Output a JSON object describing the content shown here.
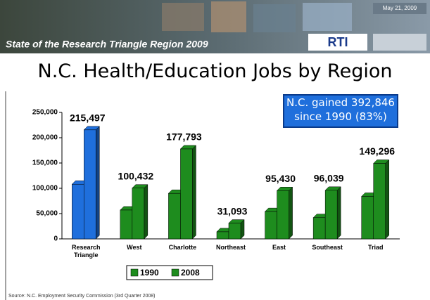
{
  "header": {
    "title": "State of the Research Triangle Region 2009",
    "date": "May 21, 2009",
    "logo": "RTI"
  },
  "source": "Source: N.C. Employment Security Commission (3rd Quarter 2008)",
  "chart_data": {
    "type": "bar",
    "title": "N.C. Health/Education Jobs by Region",
    "annotation": "N.C. gained 392,846 since 1990 (83%)",
    "categories": [
      "Research Triangle",
      "West",
      "Charlotte",
      "Northeast",
      "East",
      "Southeast",
      "Triad"
    ],
    "series": [
      {
        "name": "1990",
        "color": "#1e8c1e",
        "values": [
          108000,
          57000,
          90000,
          14000,
          54000,
          42000,
          84000
        ]
      },
      {
        "name": "2008",
        "color": "#1e8c1e",
        "values": [
          215497,
          100432,
          177793,
          31093,
          95430,
          96039,
          149296
        ],
        "value_labels": [
          "215,497",
          "100,432",
          "177,793",
          "31,093",
          "95,430",
          "96,039",
          "149,296"
        ]
      }
    ],
    "highlight_index": 0,
    "highlight_color": "#1f6fdc",
    "ylim": [
      0,
      250000
    ],
    "yticks": [
      0,
      {
        "value": 50000,
        "label": "50,000"
      },
      {
        "value": 100000,
        "label": "100,000"
      },
      {
        "value": 150000,
        "label": "150,000"
      },
      {
        "value": 200000,
        "label": "200,000"
      },
      {
        "value": 250000,
        "label": "250,000"
      }
    ],
    "legend": "bottom",
    "grid": false
  }
}
